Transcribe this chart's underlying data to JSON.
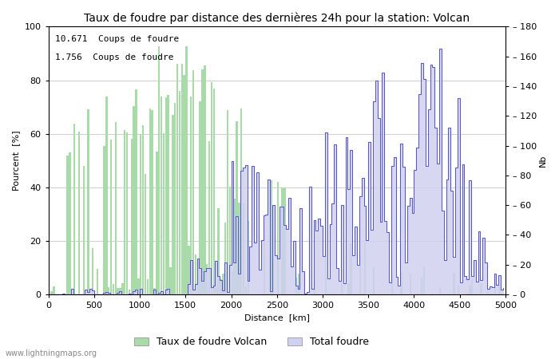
{
  "title": "Taux de foudre par distance des dernières 24h pour la station: Volcan",
  "xlabel": "Distance  [km]",
  "ylabel_left": "Pourcent  [%]",
  "ylabel_right": "Nb",
  "annotation_line1": "10.671  Coups de foudre",
  "annotation_line2": "1.756  Coups de foudre",
  "legend_label1": "Taux de foudre Volcan",
  "legend_label2": "Total foudre",
  "watermark": "www.lightningmaps.org",
  "xlim": [
    0,
    5000
  ],
  "ylim_left": [
    0,
    100
  ],
  "ylim_right": [
    0,
    180
  ],
  "xticks": [
    0,
    500,
    1000,
    1500,
    2000,
    2500,
    3000,
    3500,
    4000,
    4500,
    5000
  ],
  "yticks_left": [
    0,
    20,
    40,
    60,
    80,
    100
  ],
  "yticks_right": [
    0,
    20,
    40,
    60,
    80,
    100,
    120,
    140,
    160,
    180
  ],
  "bar_color": "#a8dba8",
  "fill_color": "#d0d0f0",
  "line_color": "#5555cc",
  "grid_color": "#bbbbbb",
  "bg_color": "#ffffff",
  "title_fontsize": 10,
  "axis_fontsize": 8,
  "tick_fontsize": 8,
  "annotation_fontsize": 8
}
